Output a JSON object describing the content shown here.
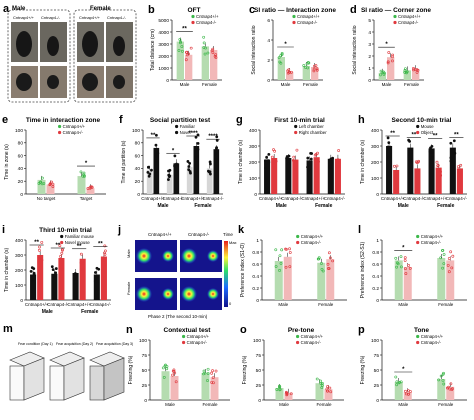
{
  "colors": {
    "wt_green": "#3cb84a",
    "ko_red": "#e0393e",
    "bar_green": "#b5dcb0",
    "bar_red": "#f2b8b8",
    "gray_bar": "#cfcfcf",
    "black": "#111111",
    "sig_red": "#d02020"
  },
  "a": {
    "letter": "a",
    "male": "Male",
    "female": "Female",
    "wt_label": "Cntnap4+/+",
    "ko_label": "Cntnap4-/-"
  },
  "chart_data": [
    {
      "id": "b",
      "letter": "b",
      "title": "OFT",
      "type": "bar",
      "ylabel": "Total distance (cm)",
      "ylim": [
        0,
        5000
      ],
      "ticks": [
        0,
        1000,
        2000,
        3000,
        4000,
        5000
      ],
      "categories": [
        "Male",
        "Female"
      ],
      "series": [
        {
          "name": "Cntnap4+/+",
          "values": [
            3200,
            2800
          ]
        },
        {
          "name": "Cntnap4-/-",
          "values": [
            2100,
            2500
          ]
        }
      ],
      "sig": [
        {
          "group": 0,
          "label": "**"
        }
      ]
    },
    {
      "id": "c",
      "letter": "c",
      "title": "SI ratio — Interaction zone",
      "type": "bar",
      "ylabel": "Social interaction ratio",
      "ylim": [
        0,
        6
      ],
      "ticks": [
        0,
        2,
        4,
        6
      ],
      "categories": [
        "Male",
        "Female"
      ],
      "series": [
        {
          "name": "Cntnap4+/+",
          "values": [
            2.3,
            1.4
          ]
        },
        {
          "name": "Cntnap4-/-",
          "values": [
            0.8,
            1.3
          ]
        }
      ],
      "sig": [
        {
          "group": 0,
          "label": "*"
        }
      ]
    },
    {
      "id": "d",
      "letter": "d",
      "title": "SI ratio — Corner zone",
      "type": "bar",
      "ylabel": "Social interaction ratio",
      "ylim": [
        0,
        5
      ],
      "ticks": [
        0,
        1,
        2,
        3,
        4,
        5
      ],
      "categories": [
        "Male",
        "Female"
      ],
      "series": [
        {
          "name": "Cntnap4+/+",
          "values": [
            0.6,
            0.8
          ]
        },
        {
          "name": "Cntnap4-/-",
          "values": [
            1.9,
            0.9
          ]
        }
      ],
      "sig": [
        {
          "group": 0,
          "label": "*"
        }
      ]
    },
    {
      "id": "e",
      "letter": "e",
      "title": "Time in interaction zone",
      "type": "bar",
      "ylabel": "Time in zone (s)",
      "ylim": [
        0,
        100
      ],
      "ticks": [
        0,
        20,
        40,
        60,
        80,
        100
      ],
      "categories": [
        "No target",
        "Target"
      ],
      "series": [
        {
          "name": "Cntnap4+/+",
          "values": [
            22,
            28
          ]
        },
        {
          "name": "Cntnap4-/-",
          "values": [
            15,
            9
          ]
        }
      ],
      "sig": [
        {
          "group": 1,
          "label": "*"
        }
      ]
    },
    {
      "id": "f",
      "letter": "f",
      "title": "Social partition test",
      "type": "bar",
      "ylabel": "Time at partition (s)",
      "ylim": [
        0,
        100
      ],
      "ticks": [
        0,
        20,
        40,
        60,
        80,
        100
      ],
      "categories": [
        "Cntnap4+/+",
        "Cntnap4-/-",
        "Cntnap4+/+",
        "Cntnap4-/-"
      ],
      "groups": [
        "Male",
        "Female"
      ],
      "series": [
        {
          "name": "Familiar",
          "values": [
            38,
            30,
            42,
            40
          ]
        },
        {
          "name": "Novel",
          "values": [
            72,
            48,
            75,
            70
          ]
        }
      ],
      "sig": [
        {
          "group": 0,
          "label": "**"
        },
        {
          "group": 1,
          "label": "*"
        },
        {
          "group": 2,
          "label": "****"
        },
        {
          "group": 3,
          "label": "****"
        }
      ]
    },
    {
      "id": "g",
      "letter": "g",
      "title": "First 10-min trial",
      "type": "bar",
      "ylabel": "Time in chamber (s)",
      "ylim": [
        0,
        400
      ],
      "ticks": [
        0,
        100,
        200,
        300,
        400
      ],
      "categories": [
        "Cntnap4+/+",
        "Cntnap4-/-",
        "Cntnap4+/+",
        "Cntnap4-/-"
      ],
      "groups": [
        "Male",
        "Female"
      ],
      "series": [
        {
          "name": "Left chamber",
          "values": [
            215,
            225,
            210,
            220
          ]
        },
        {
          "name": "Right chamber",
          "values": [
            225,
            215,
            230,
            220
          ]
        }
      ],
      "sig": []
    },
    {
      "id": "h",
      "letter": "h",
      "title": "Second 10-min trial",
      "type": "bar",
      "ylabel": "Time in chamber (s)",
      "ylim": [
        0,
        400
      ],
      "ticks": [
        0,
        100,
        200,
        300,
        400
      ],
      "categories": [
        "Cntnap4+/+",
        "Cntnap4-/-",
        "Cntnap4+/+",
        "Cntnap4-/-"
      ],
      "groups": [
        "Male",
        "Female"
      ],
      "series": [
        {
          "name": "Mouse",
          "values": [
            300,
            290,
            285,
            290
          ]
        },
        {
          "name": "Object",
          "values": [
            150,
            160,
            165,
            160
          ]
        }
      ],
      "sig": [
        {
          "group": 0,
          "label": "**"
        },
        {
          "group": 1,
          "label": "**"
        },
        {
          "group": 2,
          "label": "**"
        },
        {
          "group": 3,
          "label": "**"
        }
      ]
    },
    {
      "id": "i",
      "letter": "i",
      "title": "Third 10-min trial",
      "type": "bar",
      "ylabel": "Time in chamber (s)",
      "ylim": [
        0,
        400
      ],
      "ticks": [
        0,
        100,
        200,
        300,
        400
      ],
      "categories": [
        "Cntnap4+/+",
        "Cntnap4-/-",
        "Cntnap4+/+",
        "Cntnap4-/-"
      ],
      "groups": [
        "Male",
        "Female"
      ],
      "series": [
        {
          "name": "Familiar mouse",
          "values": [
            170,
            175,
            180,
            170
          ]
        },
        {
          "name": "Novel mouse",
          "values": [
            300,
            280,
            275,
            290
          ]
        }
      ],
      "sig": [
        {
          "group": 0,
          "label": "**"
        },
        {
          "group": 1,
          "label": "**"
        },
        {
          "group": 2,
          "label": "**"
        },
        {
          "group": 3,
          "label": "**"
        }
      ]
    },
    {
      "id": "k",
      "letter": "k",
      "title": "",
      "type": "bar",
      "ylabel": "Preference index (S1-O)",
      "ylim": [
        0,
        1.0
      ],
      "ticks": [
        0,
        0.2,
        0.4,
        0.6,
        0.8,
        1.0
      ],
      "categories": [
        "Male",
        "Female"
      ],
      "series": [
        {
          "name": "Cntnap4+/+",
          "values": [
            0.65,
            0.62
          ]
        },
        {
          "name": "Cntnap4-/-",
          "values": [
            0.72,
            0.68
          ]
        }
      ],
      "sig": []
    },
    {
      "id": "l",
      "letter": "l",
      "title": "",
      "type": "bar",
      "ylabel": "Preference index (S2-S1)",
      "ylim": [
        0,
        1.0
      ],
      "ticks": [
        0,
        0.2,
        0.4,
        0.6,
        0.8,
        1.0
      ],
      "categories": [
        "Male",
        "Female"
      ],
      "series": [
        {
          "name": "Cntnap4+/+",
          "values": [
            0.66,
            0.7
          ]
        },
        {
          "name": "Cntnap4-/-",
          "values": [
            0.55,
            0.66
          ]
        }
      ],
      "sig": [
        {
          "group": 0,
          "label": "*"
        }
      ]
    },
    {
      "id": "n",
      "letter": "n",
      "title": "Contextual test",
      "type": "bar",
      "ylabel": "Freezing (%)",
      "ylim": [
        0,
        100
      ],
      "ticks": [
        0,
        25,
        50,
        75,
        100
      ],
      "categories": [
        "Male",
        "Female"
      ],
      "series": [
        {
          "name": "Cntnap4+/+",
          "values": [
            48,
            45
          ]
        },
        {
          "name": "Cntnap4-/-",
          "values": [
            40,
            38
          ]
        }
      ],
      "sig": []
    },
    {
      "id": "o",
      "letter": "o",
      "title": "Pre-tone",
      "type": "bar",
      "ylabel": "Freezing (%)",
      "ylim": [
        0,
        100
      ],
      "ticks": [
        0,
        25,
        50,
        75,
        100
      ],
      "categories": [
        "Male",
        "Female"
      ],
      "series": [
        {
          "name": "Cntnap4+/+",
          "values": [
            20,
            28
          ]
        },
        {
          "name": "Cntnap4-/-",
          "values": [
            12,
            18
          ]
        }
      ],
      "sig": []
    },
    {
      "id": "p",
      "letter": "p",
      "title": "Tone",
      "type": "bar",
      "ylabel": "Freezing (%)",
      "ylim": [
        0,
        100
      ],
      "ticks": [
        0,
        25,
        50,
        75,
        100
      ],
      "categories": [
        "Male",
        "Female"
      ],
      "series": [
        {
          "name": "Cntnap4+/+",
          "values": [
            30,
            35
          ]
        },
        {
          "name": "Cntnap4-/-",
          "values": [
            13,
            22
          ]
        }
      ],
      "sig": [
        {
          "group": 0,
          "label": "*"
        }
      ]
    }
  ],
  "j": {
    "letter": "j",
    "wt_label": "Cntnap4+/+",
    "ko_label": "Cntnap4-/-",
    "male": "Male",
    "female": "Female",
    "time_label": "Time",
    "max_label": "Max",
    "zero_label": "0",
    "caption": "Phase 2 (The second 10-min)"
  },
  "m": {
    "letter": "m",
    "steps": [
      "Fear condition (Day 1)",
      "Fear acquisition (Day 2)",
      "Fear acquisition (Day 3)"
    ]
  },
  "legend_wt": "Cntnap4+/+",
  "legend_ko": "Cntnap4-/-"
}
